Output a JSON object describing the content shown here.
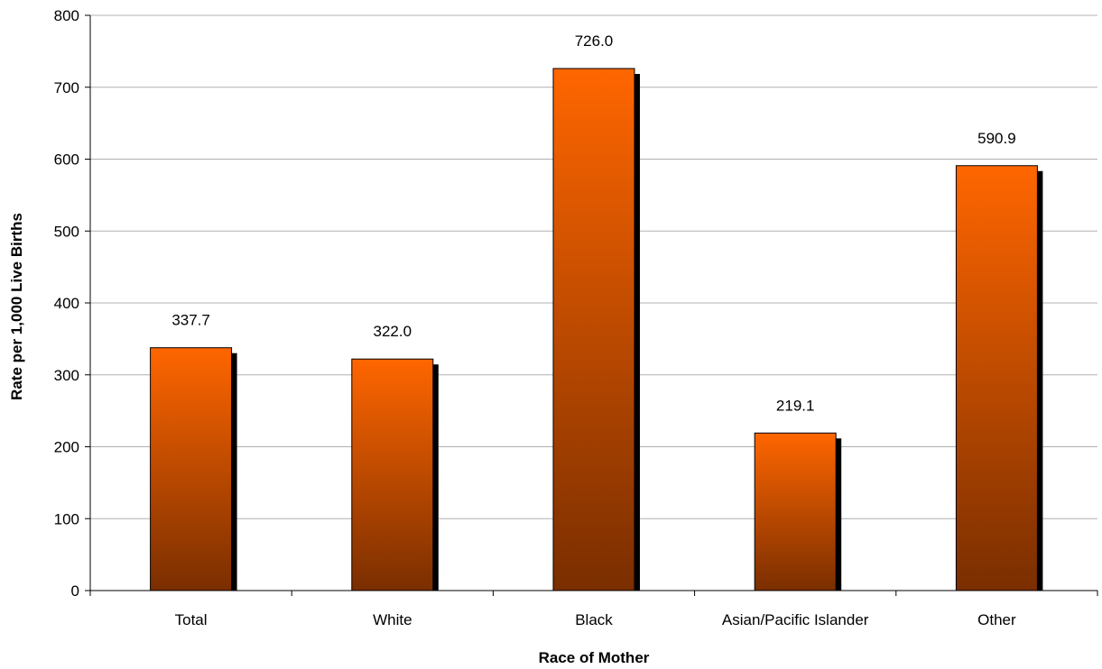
{
  "chart_data": {
    "type": "bar",
    "categories": [
      "Total",
      "White",
      "Black",
      "Asian/Pacific Islander",
      "Other"
    ],
    "series": [
      {
        "values": [
          337.7,
          322.0,
          726.0,
          219.1,
          590.9
        ],
        "data_labels": [
          "337.7",
          "322.0",
          "726.0",
          "219.1",
          "590.9"
        ]
      }
    ],
    "title": "",
    "xlabel": "Race of Mother",
    "ylabel": "Rate per 1,000 Live Births",
    "ylim": [
      0,
      800
    ],
    "yticks": [
      "0",
      "100",
      "200",
      "300",
      "400",
      "500",
      "600",
      "700",
      "800"
    ],
    "grid": true,
    "legend": "none"
  },
  "colors": {
    "bar_top": "#ff6600",
    "bar_bottom": "#7a2e00",
    "bar_shadow": "#000000",
    "gridline": "#b0b0b0",
    "axis": "#000000"
  }
}
